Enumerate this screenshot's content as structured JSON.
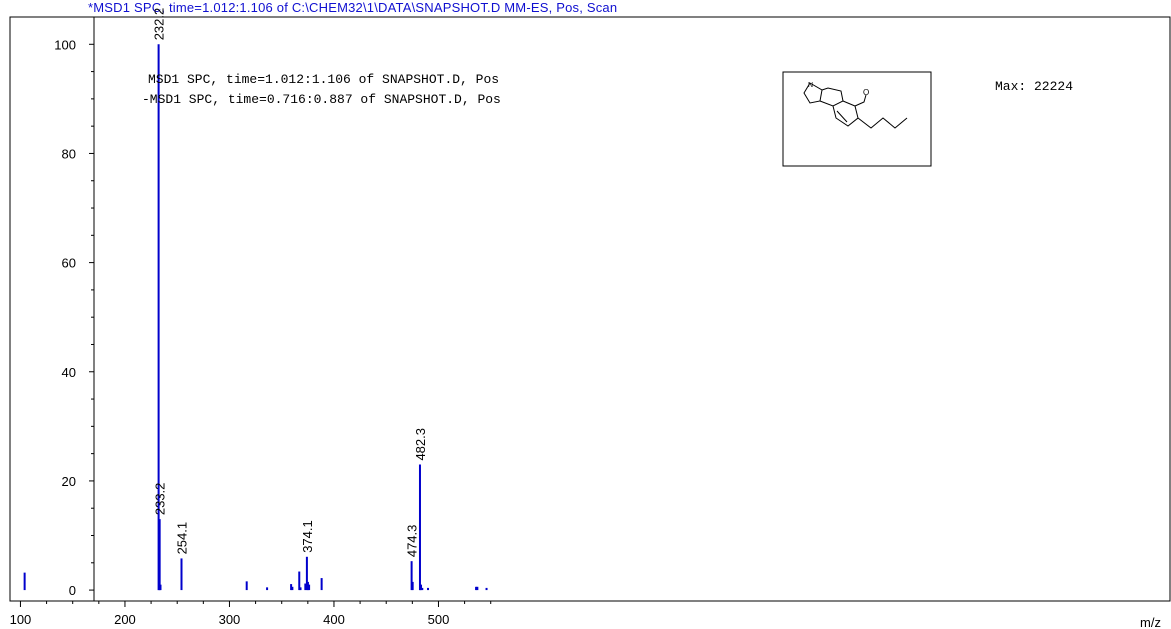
{
  "header": {
    "title": "*MSD1 SPC, time=1.012:1.106 of C:\\CHEM32\\1\\DATA\\SNAPSHOT.D    MM-ES, Pos, Scan"
  },
  "chart_data": {
    "type": "bar",
    "title": "*MSD1 SPC, time=1.012:1.106 of C:\\CHEM32\\1\\DATA\\SNAPSHOT.D    MM-ES, Pos, Scan",
    "xlabel": "m/z",
    "ylabel": "",
    "xlim": [
      90,
      1200
    ],
    "ylim": [
      -2,
      105
    ],
    "x_ticks": [
      100,
      200,
      300,
      400,
      500
    ],
    "y_ticks": [
      0,
      20,
      40,
      60,
      80,
      100
    ],
    "color": "#0000cc",
    "legend": [
      "MSD1 SPC, time=1.012:1.106 of SNAPSHOT.D, Pos",
      "-MSD1 SPC, time=0.716:0.887 of SNAPSHOT.D, Pos"
    ],
    "max_label": "Max: 22224",
    "peaks": [
      {
        "x": 104.0,
        "y": 3.2
      },
      {
        "x": 232.2,
        "y": 100,
        "label": "232.2"
      },
      {
        "x": 233.2,
        "y": 13,
        "label": "233.2"
      },
      {
        "x": 234.0,
        "y": 1.0
      },
      {
        "x": 254.1,
        "y": 5.8,
        "label": "254.1"
      },
      {
        "x": 316.5,
        "y": 1.6
      },
      {
        "x": 336.0,
        "y": 0.5
      },
      {
        "x": 359.0,
        "y": 1.1
      },
      {
        "x": 360.2,
        "y": 0.6
      },
      {
        "x": 366.8,
        "y": 3.4
      },
      {
        "x": 368.0,
        "y": 0.5
      },
      {
        "x": 372.6,
        "y": 1.2
      },
      {
        "x": 374.1,
        "y": 6.1,
        "label": "374.1"
      },
      {
        "x": 375.1,
        "y": 1.5
      },
      {
        "x": 376.2,
        "y": 1.0
      },
      {
        "x": 388.2,
        "y": 2.2
      },
      {
        "x": 474.3,
        "y": 5.3,
        "label": "474.3"
      },
      {
        "x": 475.3,
        "y": 1.5
      },
      {
        "x": 482.3,
        "y": 23,
        "label": "482.3"
      },
      {
        "x": 483.3,
        "y": 1.0
      },
      {
        "x": 484.5,
        "y": 0.4
      },
      {
        "x": 490.0,
        "y": 0.4
      },
      {
        "x": 536.0,
        "y": 0.6
      },
      {
        "x": 537.2,
        "y": 0.6
      },
      {
        "x": 546.0,
        "y": 0.4
      }
    ]
  }
}
